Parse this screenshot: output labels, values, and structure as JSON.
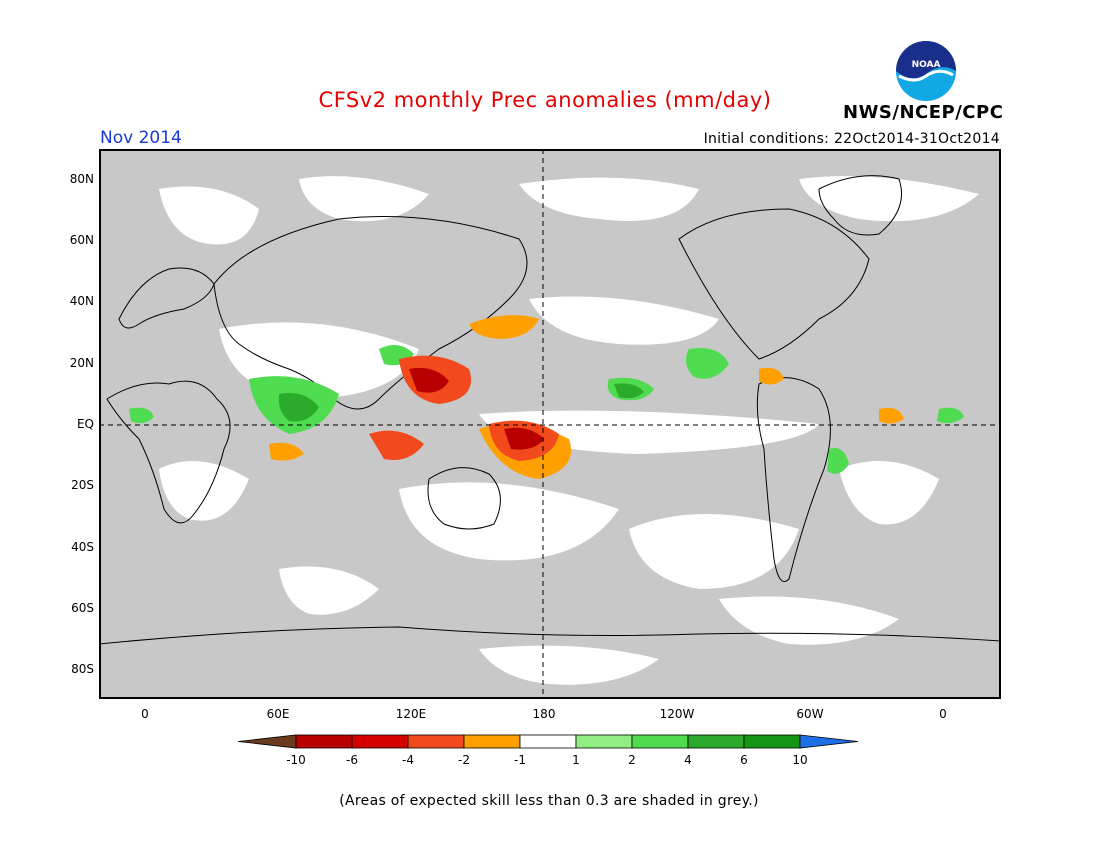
{
  "title": "CFSv2 monthly Prec anomalies (mm/day)",
  "month": "Nov 2014",
  "initial_conditions": "Initial conditions: 22Oct2014-31Oct2014",
  "agency": "NWS/NCEP/CPC",
  "logo_text": "NOAA",
  "latitude_labels": [
    "80N",
    "60N",
    "40N",
    "20N",
    "EQ",
    "20S",
    "40S",
    "60S",
    "80S"
  ],
  "longitude_labels": [
    "0",
    "60E",
    "120E",
    "180",
    "120W",
    "60W",
    "0"
  ],
  "colorbar": {
    "ticks": [
      "-10",
      "-6",
      "-4",
      "-2",
      "-1",
      "1",
      "2",
      "4",
      "6",
      "10"
    ],
    "colors": [
      "#6b3b1e",
      "#b80000",
      "#d40000",
      "#f2491d",
      "#ffa000",
      "#ffffff",
      "#90ee82",
      "#50dc50",
      "#2caa2c",
      "#139613",
      "#1e6ee6"
    ]
  },
  "map": {
    "land_outline_color": "#000000",
    "low_skill_color": "#c8c8c8",
    "ocean_color": "#ffffff"
  },
  "footnote": "(Areas of expected skill less than 0.3 are shaded in grey.)"
}
